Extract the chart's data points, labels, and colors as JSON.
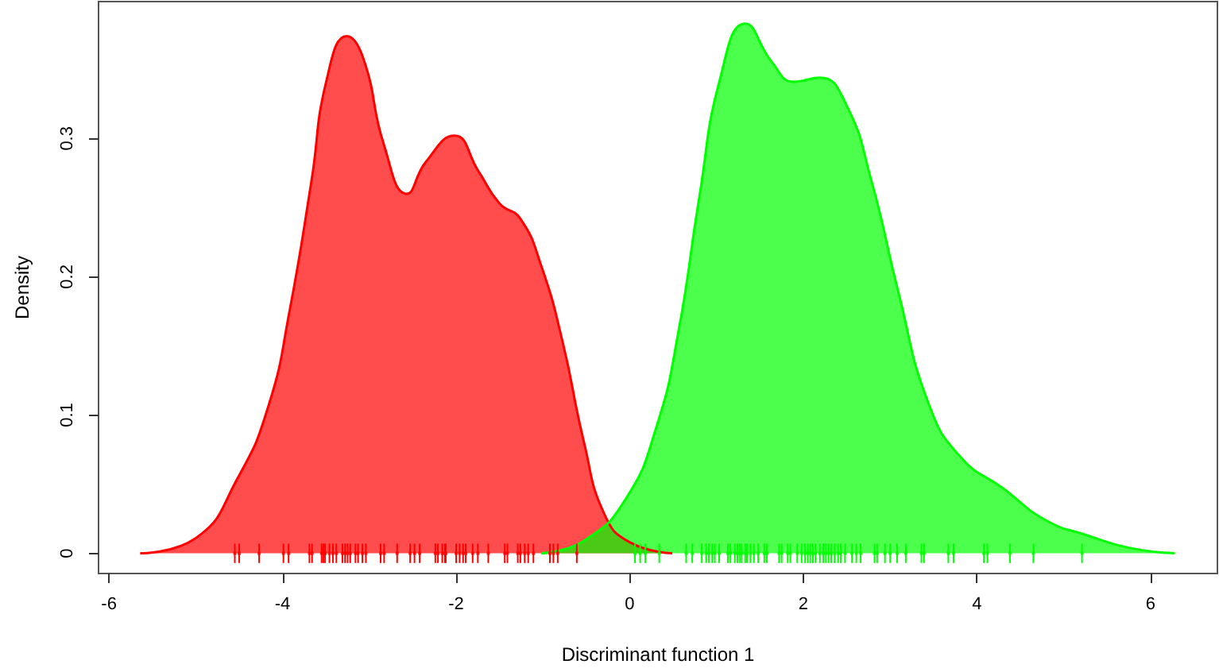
{
  "chart_data": {
    "type": "area",
    "xlabel": "Discriminant function 1",
    "ylabel": "Density",
    "xlim": [
      -6.12,
      6.77
    ],
    "ylim": [
      -0.0146,
      0.399
    ],
    "xticks": [
      -6,
      -4,
      -2,
      0,
      2,
      4,
      6
    ],
    "yticks": [
      0,
      0.1,
      0.2,
      0.3
    ],
    "grid": false,
    "series": [
      {
        "color": "#ff0000",
        "x": [
          -5.64,
          -5.0,
          -4.52,
          -4.16,
          -3.92,
          -3.67,
          -3.49,
          -3.26,
          -3.07,
          -2.83,
          -2.57,
          -2.35,
          -2.02,
          -1.74,
          -1.5,
          -1.26,
          -1.02,
          -0.77,
          -0.53,
          -0.29,
          0.0,
          0.49
        ],
        "values": [
          0,
          0.011,
          0.054,
          0.107,
          0.175,
          0.268,
          0.343,
          0.374,
          0.358,
          0.295,
          0.26,
          0.283,
          0.302,
          0.276,
          0.253,
          0.242,
          0.208,
          0.152,
          0.081,
          0.028,
          0.008,
          0
        ]
      },
      {
        "color": "#00ff00",
        "x": [
          -1.02,
          -0.53,
          -0.05,
          0.31,
          0.56,
          0.8,
          1.04,
          1.33,
          1.64,
          1.89,
          2.19,
          2.49,
          2.79,
          3.09,
          3.45,
          3.82,
          4.3,
          4.79,
          5.27,
          5.75,
          6.28
        ],
        "values": [
          0,
          0.009,
          0.039,
          0.092,
          0.16,
          0.257,
          0.343,
          0.383,
          0.355,
          0.341,
          0.344,
          0.325,
          0.268,
          0.19,
          0.107,
          0.069,
          0.047,
          0.024,
          0.013,
          0.004,
          0
        ]
      },
      {
        "type": "scatter",
        "marker": "square",
        "color": "#ff0000",
        "errors": [
          0.007,
          0.007,
          0.007,
          0.007,
          0.007,
          0.007,
          0.007,
          0.007,
          0.007,
          0.007,
          0.007,
          0.007,
          0.007,
          0.007,
          0.007,
          0.007,
          0.007,
          0.007,
          0.007,
          0.007,
          0.007,
          0.007,
          0.007,
          0.007,
          0.007,
          0.007,
          0.007,
          0.007,
          0.007,
          0.007,
          0.007,
          0.007,
          0.007,
          0.007,
          0.007,
          0.007,
          0.007,
          0.007,
          0.007,
          0.007,
          0.007,
          0.007,
          0.007,
          0.007,
          0.007,
          0.007,
          0.007,
          0.007,
          0.007,
          0.007
        ],
        "x": [
          -4.55,
          -4.5,
          -4.27,
          -3.99,
          -3.93,
          -3.69,
          -3.66,
          -3.55,
          -3.53,
          -3.51,
          -3.46,
          -3.42,
          -3.38,
          -3.31,
          -3.28,
          -3.25,
          -3.22,
          -3.16,
          -3.13,
          -3.08,
          -3.04,
          -2.87,
          -2.83,
          -2.68,
          -2.53,
          -2.48,
          -2.42,
          -2.24,
          -2.21,
          -2.16,
          -2.13,
          -2.12,
          -2.0,
          -1.96,
          -1.92,
          -1.89,
          -1.81,
          -1.75,
          -1.63,
          -1.44,
          -1.41,
          -1.29,
          -1.26,
          -1.21,
          -1.17,
          -1.11,
          -0.92,
          -0.88,
          -0.83,
          -0.61
        ],
        "values": [
          0,
          0,
          0,
          0,
          0,
          0,
          0,
          0,
          0,
          0,
          0,
          0,
          0,
          0,
          0,
          0,
          0,
          0,
          0,
          0,
          0,
          0,
          0,
          0,
          0,
          0,
          0,
          0,
          0,
          0,
          0,
          0,
          0,
          0,
          0,
          0,
          0,
          0,
          0,
          0,
          0,
          0,
          0,
          0,
          0,
          0,
          0,
          0,
          0,
          0
        ]
      },
      {
        "type": "scatter",
        "marker": "square",
        "color": "#00ff00",
        "errors": [
          0.007,
          0.007,
          0.007,
          0.007,
          0.007,
          0.007,
          0.007,
          0.007,
          0.007,
          0.007,
          0.007,
          0.007,
          0.007,
          0.007,
          0.007,
          0.007,
          0.007,
          0.007,
          0.007,
          0.007,
          0.007,
          0.007,
          0.007,
          0.007,
          0.007,
          0.007,
          0.007,
          0.007,
          0.007,
          0.007,
          0.007,
          0.007,
          0.007,
          0.007,
          0.007,
          0.007,
          0.007,
          0.007,
          0.007,
          0.007,
          0.007,
          0.007,
          0.007,
          0.007,
          0.007,
          0.007,
          0.007,
          0.007,
          0.007,
          0.007,
          0.007,
          0.007,
          0.007,
          0.007,
          0.007,
          0.007,
          0.007,
          0.007,
          0.007,
          0.007,
          0.007,
          0.007,
          0.007
        ],
        "x": [
          0.06,
          0.12,
          0.18,
          0.34,
          0.65,
          0.72,
          0.83,
          0.88,
          0.91,
          0.95,
          0.98,
          1.03,
          1.13,
          1.16,
          1.21,
          1.24,
          1.27,
          1.29,
          1.33,
          1.35,
          1.39,
          1.43,
          1.48,
          1.55,
          1.58,
          1.72,
          1.75,
          1.82,
          1.85,
          1.93,
          1.98,
          2.02,
          2.05,
          2.08,
          2.11,
          2.14,
          2.19,
          2.23,
          2.26,
          2.29,
          2.32,
          2.36,
          2.4,
          2.43,
          2.48,
          2.56,
          2.61,
          2.66,
          2.82,
          2.85,
          2.94,
          3.0,
          3.08,
          3.18,
          3.36,
          3.39,
          3.67,
          3.73,
          4.08,
          4.12,
          4.38,
          4.65,
          5.21
        ],
        "values": [
          0,
          0,
          0,
          0,
          0,
          0,
          0,
          0,
          0,
          0,
          0,
          0,
          0,
          0,
          0,
          0,
          0,
          0,
          0,
          0,
          0,
          0,
          0,
          0,
          0,
          0,
          0,
          0,
          0,
          0,
          0,
          0,
          0,
          0,
          0,
          0,
          0,
          0,
          0,
          0,
          0,
          0,
          0,
          0,
          0,
          0,
          0,
          0,
          0,
          0,
          0,
          0,
          0,
          0,
          0,
          0,
          0,
          0,
          0,
          0,
          0,
          0,
          0
        ]
      }
    ]
  }
}
